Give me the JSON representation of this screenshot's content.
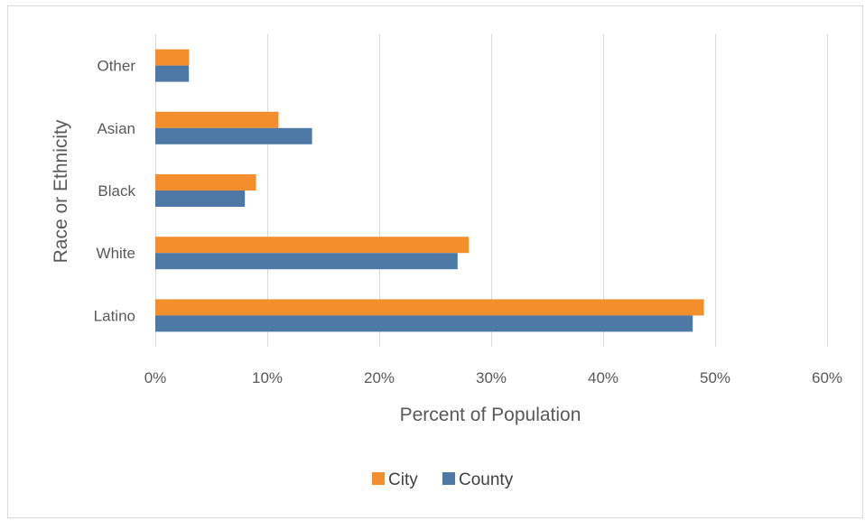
{
  "chart_data": {
    "type": "bar",
    "orientation": "horizontal",
    "title": "",
    "xlabel": "Percent of Population",
    "ylabel": "Race or Ethnicity",
    "categories": [
      "Latino",
      "White",
      "Black",
      "Asian",
      "Other"
    ],
    "series": [
      {
        "name": "City",
        "color": "#f28e2b",
        "values": [
          49,
          28,
          9,
          11,
          3
        ]
      },
      {
        "name": "County",
        "color": "#4e79a7",
        "values": [
          48,
          27,
          8,
          14,
          3
        ]
      }
    ],
    "xlim": [
      0,
      60
    ],
    "x_ticks": [
      0,
      10,
      20,
      30,
      40,
      50,
      60
    ],
    "x_tick_labels": [
      "0%",
      "10%",
      "20%",
      "30%",
      "40%",
      "50%",
      "60%"
    ],
    "grid": "vertical",
    "legend_position": "bottom"
  }
}
